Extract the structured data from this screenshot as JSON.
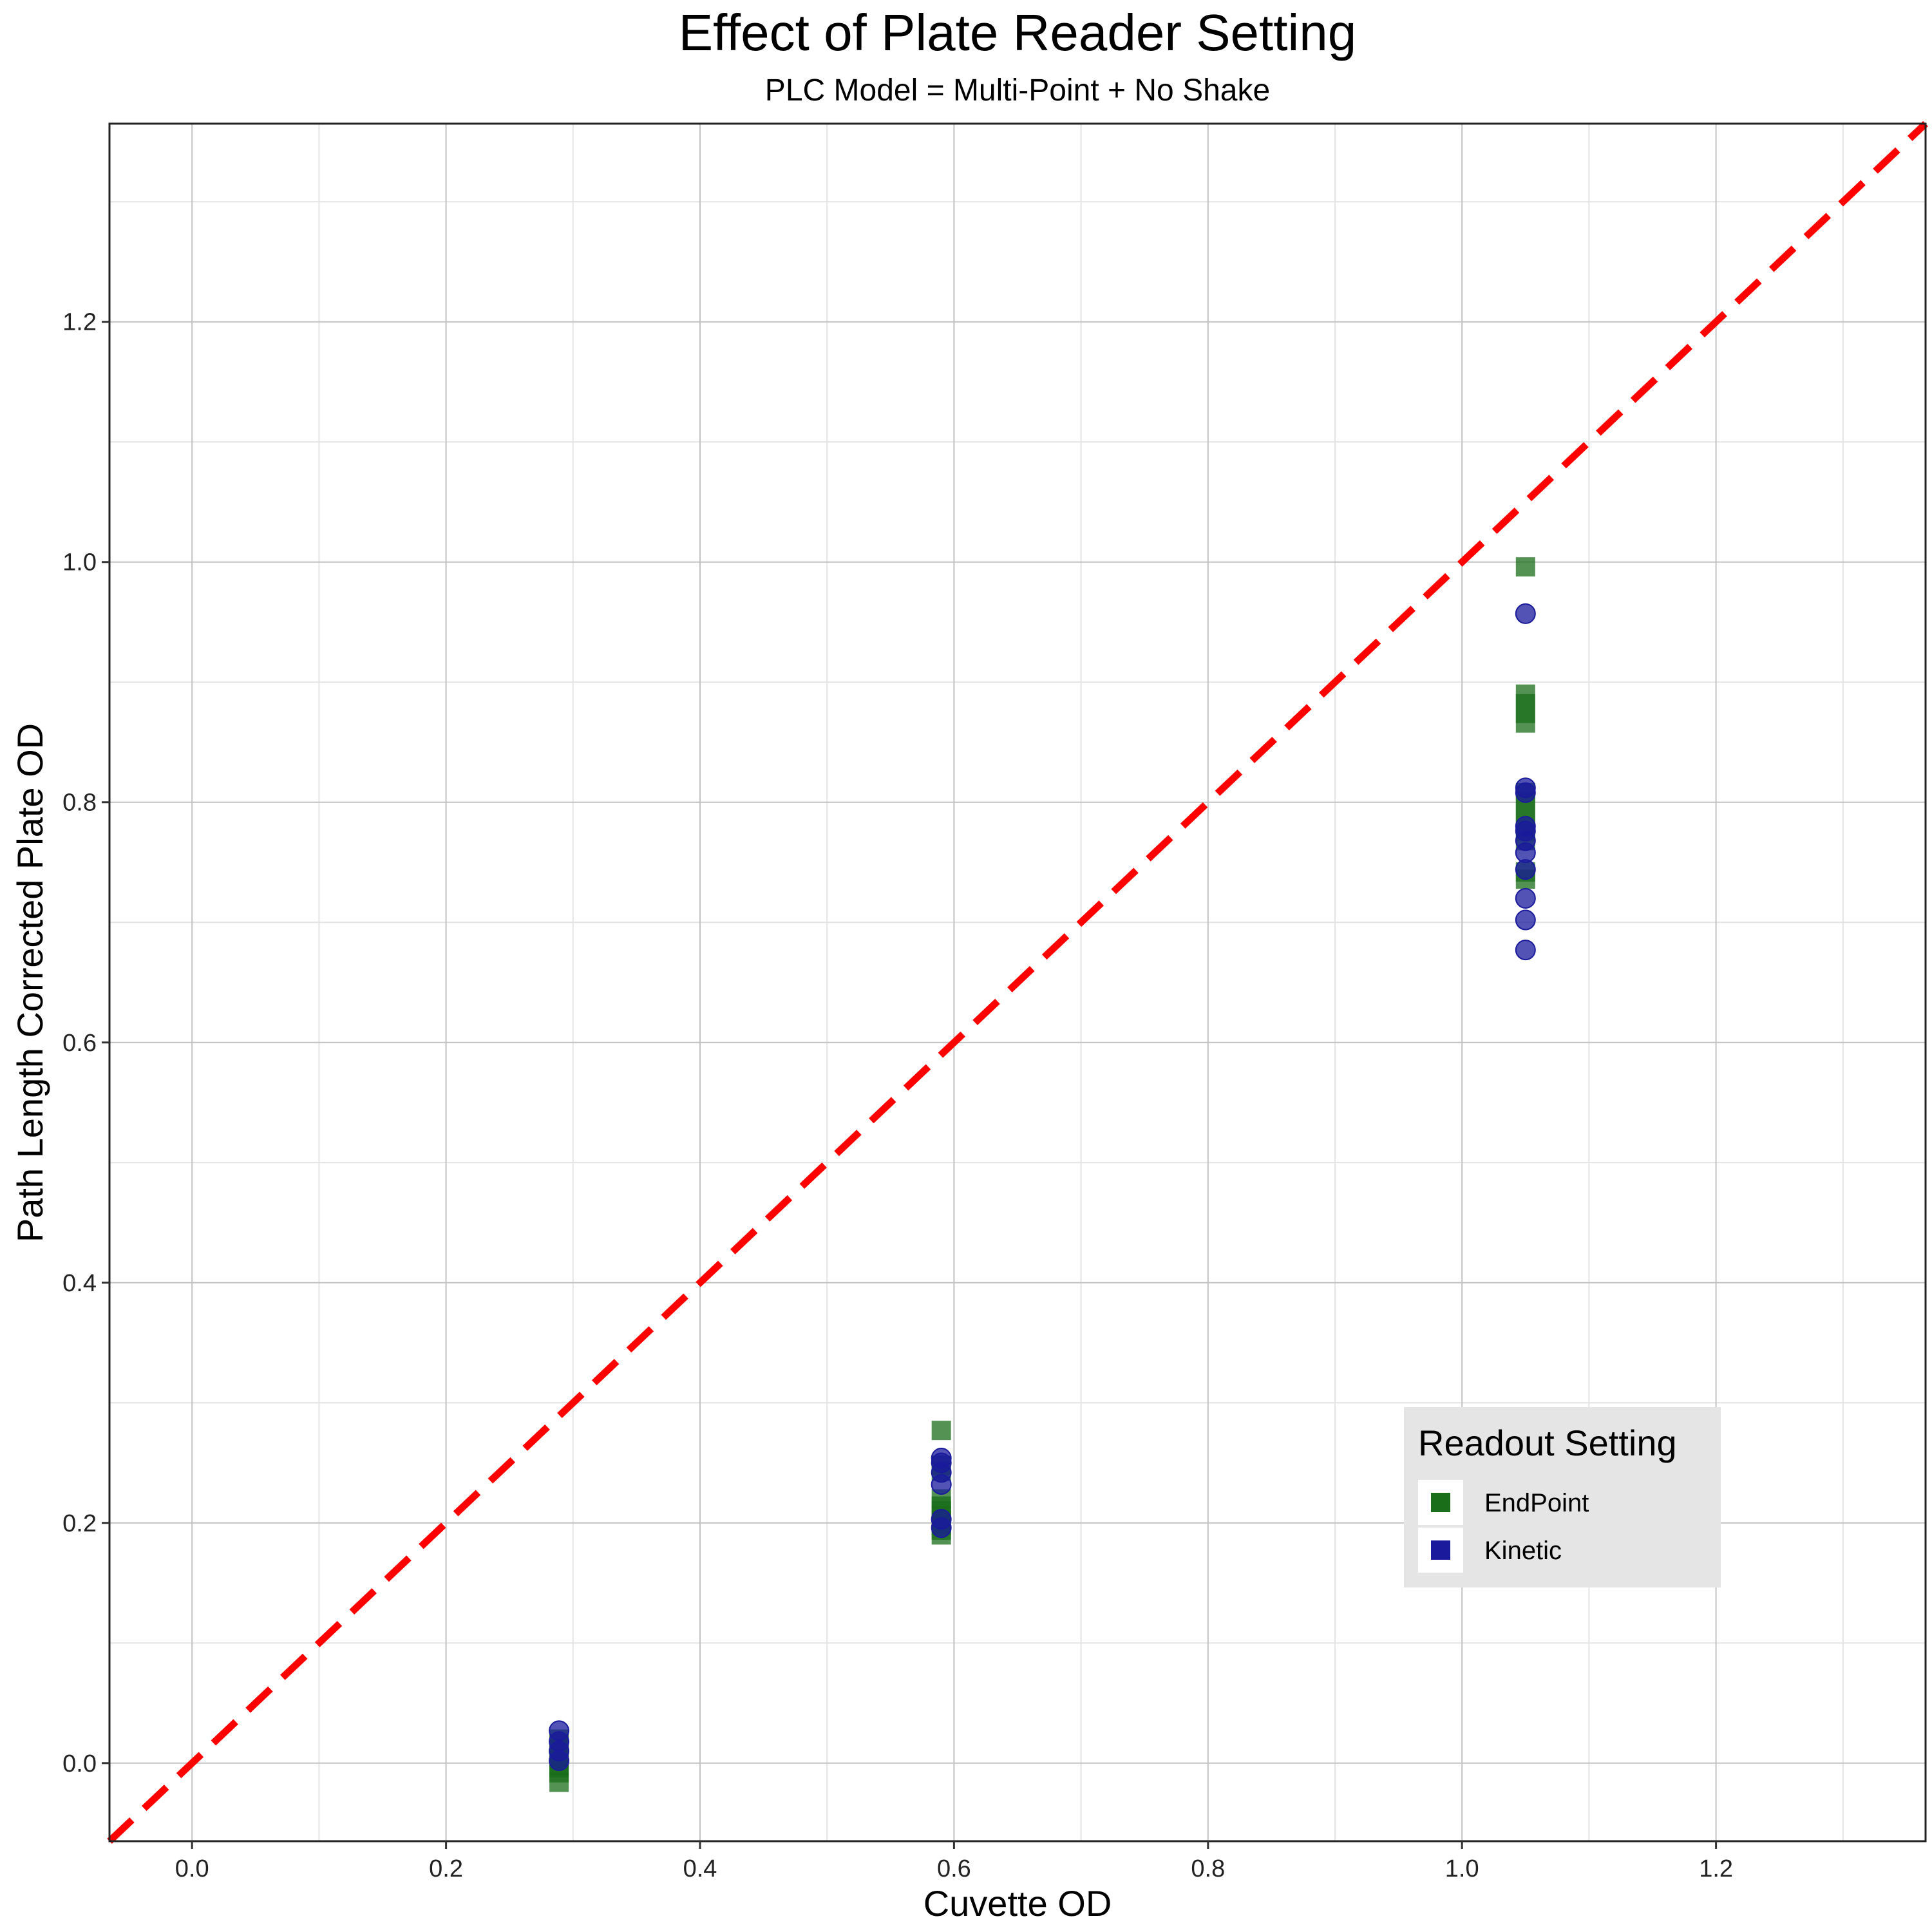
{
  "chart_data": {
    "type": "scatter",
    "title": "Effect of Plate Reader Setting",
    "subtitle": "PLC Model = Multi-Point + No Shake",
    "xlabel": "Cuvette OD",
    "ylabel": "Path Length Corrected Plate OD",
    "xlim": [
      -0.065,
      1.365
    ],
    "ylim": [
      -0.065,
      1.365
    ],
    "x_ticks": [
      0.0,
      0.2,
      0.4,
      0.6,
      0.8,
      1.0,
      1.2
    ],
    "y_ticks": [
      0.0,
      0.2,
      0.4,
      0.6,
      0.8,
      1.0,
      1.2
    ],
    "x_tick_labels": [
      "0.0",
      "0.2",
      "0.4",
      "0.6",
      "0.8",
      "1.0",
      "1.2"
    ],
    "y_tick_labels": [
      "0.0",
      "0.2",
      "0.4",
      "0.6",
      "0.8",
      "1.0",
      "1.2"
    ],
    "grid": true,
    "reference_line": {
      "type": "identity",
      "color": "#ff0000",
      "style": "dashed"
    },
    "legend": {
      "title": "Readout Setting",
      "position": "bottom-right-inside"
    },
    "series": [
      {
        "name": "EndPoint",
        "marker": "square",
        "color": "#1a6e1a",
        "points": [
          [
            0.289,
            -0.016
          ],
          [
            0.289,
            -0.008
          ],
          [
            0.289,
            -0.002
          ],
          [
            0.289,
            0.003
          ],
          [
            0.289,
            0.008
          ],
          [
            0.289,
            0.012
          ],
          [
            0.289,
            0.016
          ],
          [
            0.289,
            0.02
          ],
          [
            0.289,
            0.006
          ],
          [
            0.289,
            -0.004
          ],
          [
            0.59,
            0.19
          ],
          [
            0.59,
            0.194
          ],
          [
            0.59,
            0.198
          ],
          [
            0.59,
            0.202
          ],
          [
            0.59,
            0.206
          ],
          [
            0.59,
            0.21
          ],
          [
            0.59,
            0.214
          ],
          [
            0.59,
            0.22
          ],
          [
            0.59,
            0.243
          ],
          [
            0.59,
            0.248
          ],
          [
            0.59,
            0.277
          ],
          [
            1.05,
            0.996
          ],
          [
            1.05,
            0.89
          ],
          [
            1.05,
            0.882
          ],
          [
            1.05,
            0.874
          ],
          [
            1.05,
            0.866
          ],
          [
            1.05,
            0.808
          ],
          [
            1.05,
            0.8
          ],
          [
            1.05,
            0.792
          ],
          [
            1.05,
            0.784
          ],
          [
            1.05,
            0.776
          ],
          [
            1.05,
            0.768
          ],
          [
            1.05,
            0.742
          ],
          [
            1.05,
            0.736
          ]
        ]
      },
      {
        "name": "Kinetic",
        "marker": "circle",
        "color": "#1a1a9c",
        "points": [
          [
            0.289,
            0.027
          ],
          [
            0.289,
            0.018
          ],
          [
            0.289,
            0.01
          ],
          [
            0.289,
            0.002
          ],
          [
            0.59,
            0.254
          ],
          [
            0.59,
            0.25
          ],
          [
            0.59,
            0.242
          ],
          [
            0.59,
            0.232
          ],
          [
            0.59,
            0.203
          ],
          [
            0.59,
            0.196
          ],
          [
            1.05,
            0.957
          ],
          [
            1.05,
            0.812
          ],
          [
            1.05,
            0.808
          ],
          [
            1.05,
            0.78
          ],
          [
            1.05,
            0.776
          ],
          [
            1.05,
            0.768
          ],
          [
            1.05,
            0.758
          ],
          [
            1.05,
            0.744
          ],
          [
            1.05,
            0.72
          ],
          [
            1.05,
            0.702
          ],
          [
            1.05,
            0.677
          ]
        ]
      }
    ]
  }
}
